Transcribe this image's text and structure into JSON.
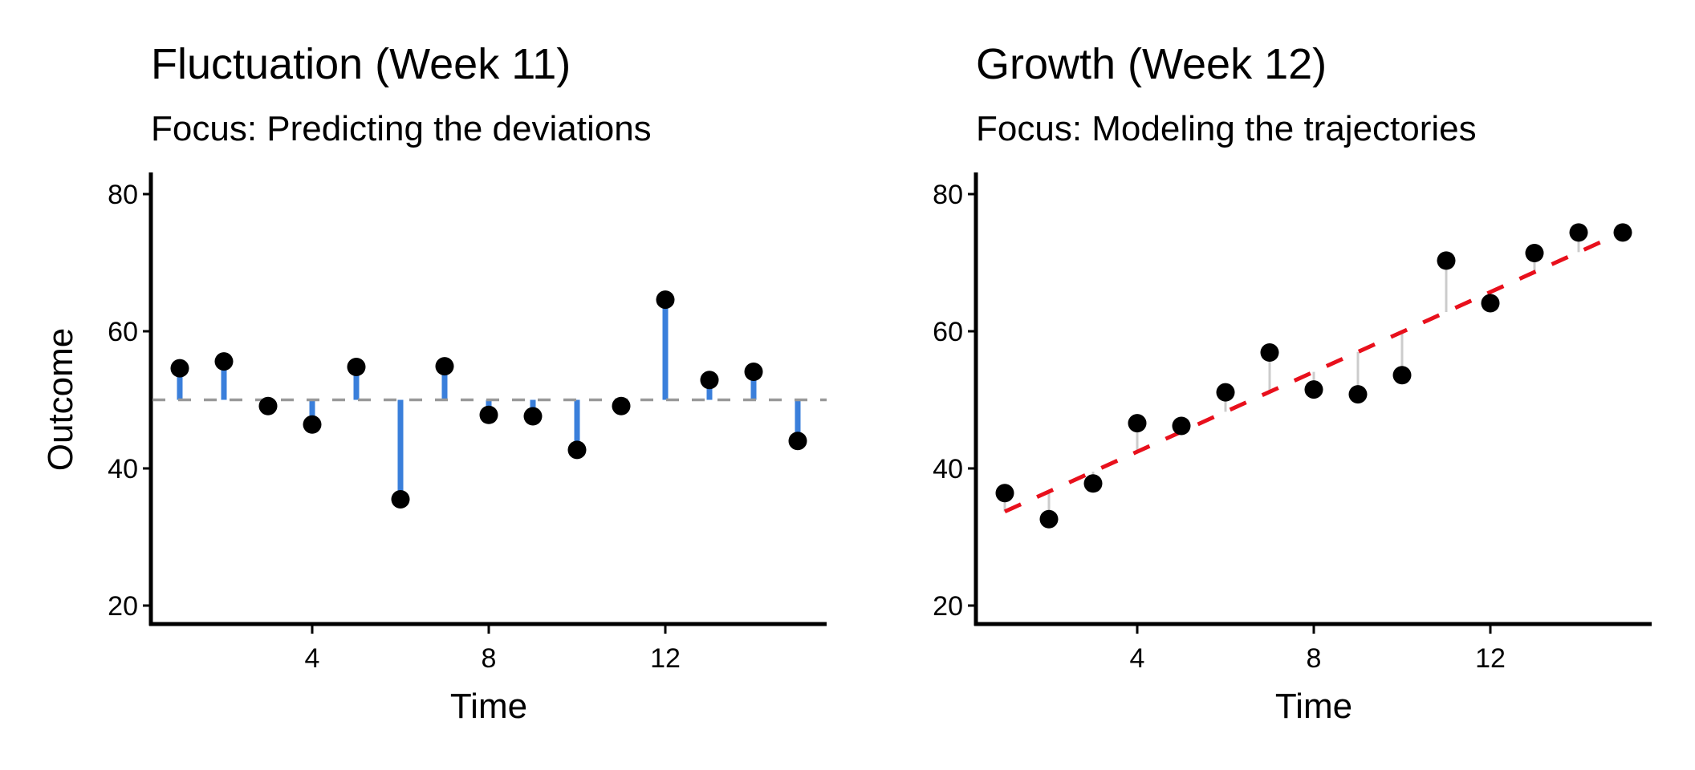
{
  "chart_data": [
    {
      "type": "scatter",
      "variant": "lollipop-deviation",
      "title": "Fluctuation (Week 11)",
      "subtitle": "Focus: Predicting the deviations",
      "xlabel": "Time",
      "ylabel": "Outcome",
      "xlim": [
        0.4,
        15.9
      ],
      "ylim": [
        17,
        83
      ],
      "xticks": [
        4,
        8,
        12
      ],
      "yticks": [
        20,
        40,
        60,
        80
      ],
      "x": [
        1,
        2,
        3,
        4,
        5,
        6,
        7,
        8,
        9,
        10,
        11,
        12,
        13,
        14,
        15
      ],
      "y": [
        54.6,
        55.6,
        49.1,
        46.4,
        54.8,
        35.5,
        54.9,
        47.8,
        47.6,
        42.7,
        49.1,
        64.6,
        52.9,
        54.1,
        44.0
      ],
      "reference_line": {
        "type": "horizontal",
        "value": 50,
        "style": "dashed",
        "color": "#999999"
      },
      "stem_color": "#3A7FDB",
      "point_color": "#000000",
      "show_ylabel": true,
      "grid": false
    },
    {
      "type": "scatter",
      "variant": "residual-trend",
      "title": "Growth (Week 12)",
      "subtitle": "Focus: Modeling the trajectories",
      "xlabel": "Time",
      "ylabel": "",
      "xlim": [
        0.4,
        15.9
      ],
      "ylim": [
        17,
        83
      ],
      "xticks": [
        4,
        8,
        12
      ],
      "yticks": [
        20,
        40,
        60,
        80
      ],
      "x": [
        1,
        2,
        3,
        4,
        5,
        6,
        7,
        8,
        9,
        10,
        11,
        12,
        13,
        14,
        15
      ],
      "y": [
        36.4,
        32.6,
        37.8,
        46.6,
        46.2,
        51.1,
        56.9,
        51.5,
        50.8,
        53.6,
        70.3,
        64.1,
        71.4,
        74.4,
        74.4
      ],
      "reference_line": {
        "type": "linear",
        "intercept": 30.8,
        "slope": 2.91,
        "style": "dashed",
        "color": "#E8101C"
      },
      "stem_color": "#CCCCCC",
      "point_color": "#000000",
      "show_ylabel": false,
      "grid": false
    }
  ]
}
